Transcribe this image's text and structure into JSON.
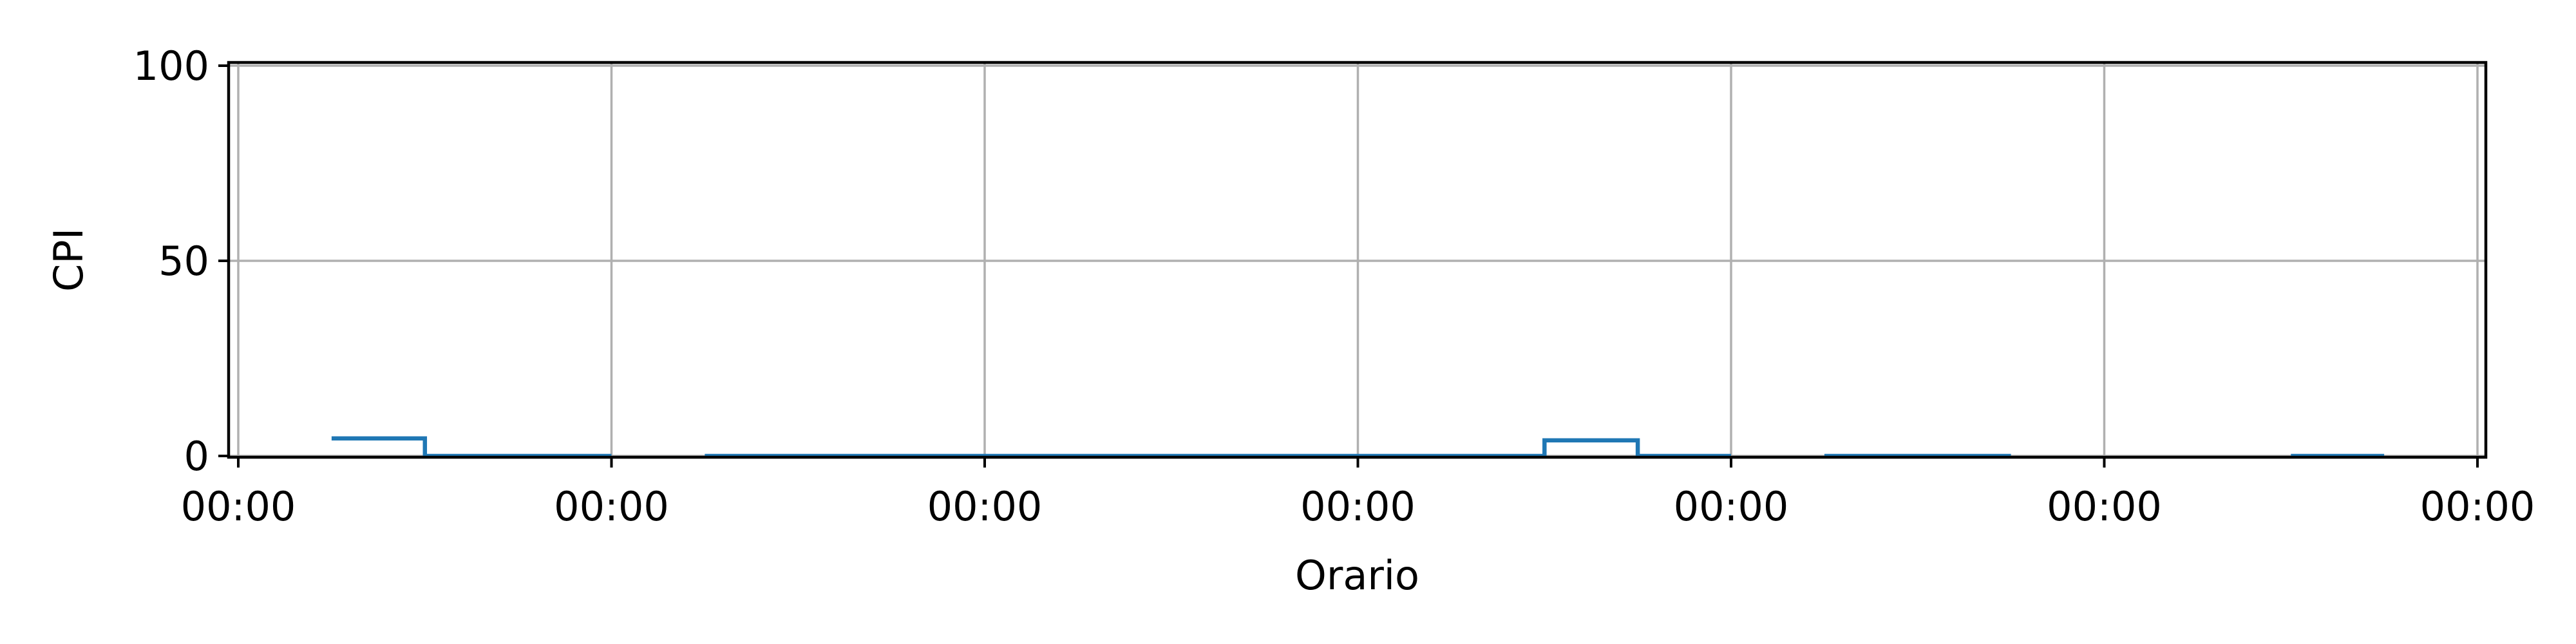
{
  "chart_data": {
    "type": "line",
    "line_style": "step",
    "xlabel": "Orario",
    "ylabel": "CPI",
    "ylim": [
      0,
      100
    ],
    "yticks": [
      0,
      50,
      100
    ],
    "xticks": [
      "00:00",
      "00:00",
      "00:00",
      "00:00",
      "00:00",
      "00:00",
      "00:00"
    ],
    "grid": true,
    "series_color": "#1f77b4",
    "segments": [
      {
        "points": [
          [
            0.25,
            4.5
          ],
          [
            0.5,
            4.5
          ],
          [
            0.5,
            0
          ],
          [
            1.0,
            0
          ]
        ]
      },
      {
        "points": [
          [
            1.25,
            0
          ],
          [
            3.5,
            0
          ],
          [
            3.5,
            4
          ],
          [
            3.75,
            4
          ],
          [
            3.75,
            0
          ],
          [
            4.0,
            0
          ]
        ]
      },
      {
        "points": [
          [
            4.25,
            0
          ],
          [
            4.75,
            0
          ]
        ]
      },
      {
        "points": [
          [
            5.5,
            0
          ],
          [
            5.75,
            0
          ]
        ]
      }
    ]
  }
}
